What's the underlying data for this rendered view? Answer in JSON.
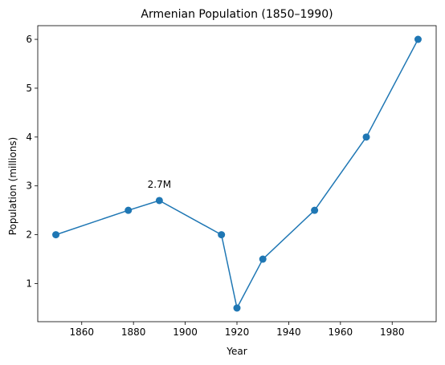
{
  "chart_data": {
    "type": "line",
    "title": "Armenian Population (1850–1990)",
    "xlabel": "Year",
    "ylabel": "Population (millions)",
    "xlim": [
      1843,
      1997
    ],
    "ylim": [
      0.22,
      6.28
    ],
    "xticks": [
      1860,
      1880,
      1900,
      1920,
      1940,
      1960,
      1980
    ],
    "yticks": [
      1,
      2,
      3,
      4,
      5,
      6
    ],
    "grid": false,
    "series": [
      {
        "color": "#1f77b4",
        "marker": "circle",
        "x": [
          1850,
          1878,
          1890,
          1914,
          1920,
          1930,
          1950,
          1970,
          1990
        ],
        "y": [
          2.0,
          2.5,
          2.7,
          2.0,
          0.5,
          1.5,
          2.5,
          4.0,
          6.0
        ]
      }
    ],
    "annotations": [
      {
        "text": "2.7M",
        "x": 1890,
        "y": 2.7
      }
    ]
  }
}
